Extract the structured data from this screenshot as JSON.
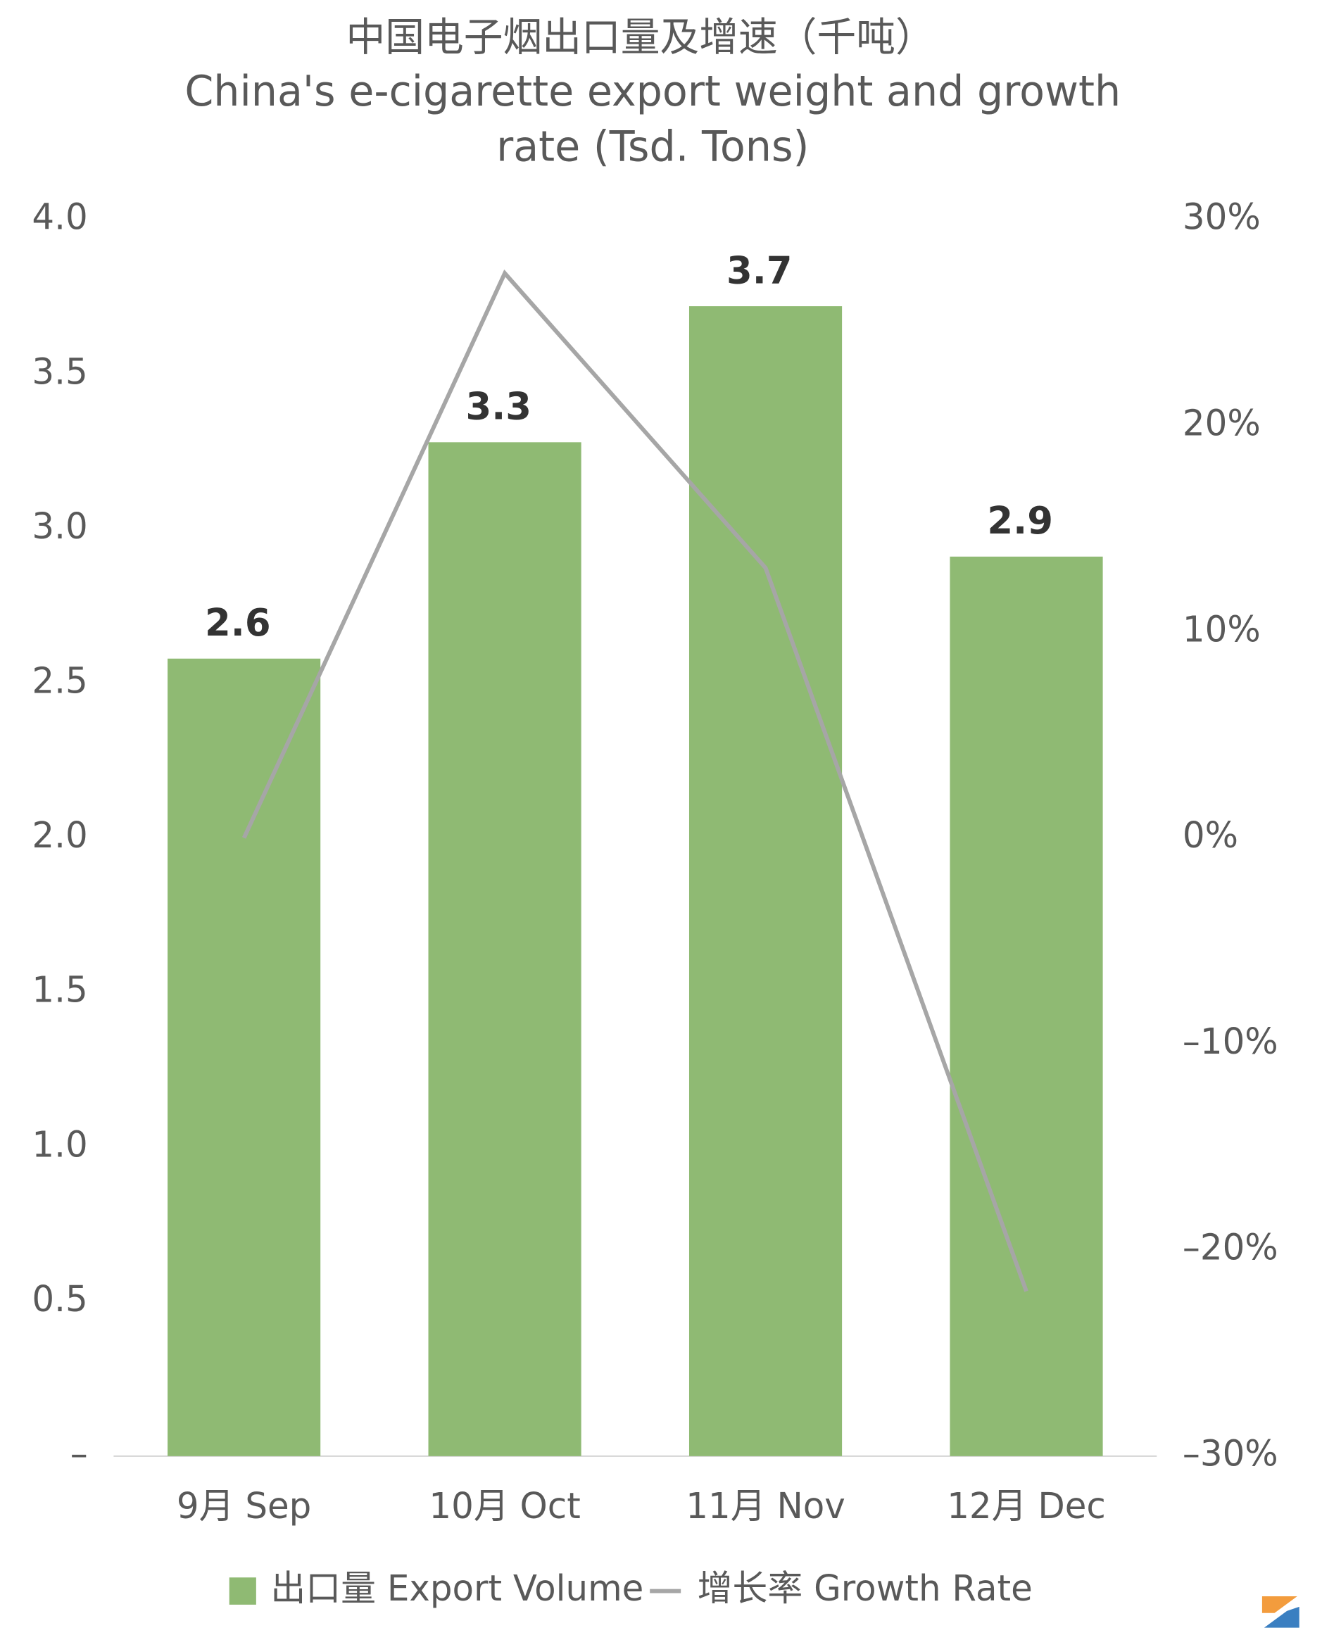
{
  "chart_data": {
    "type": "bar_line",
    "title": "中国电子烟出口量及增速（千吨）",
    "subtitle": [
      "China's e-cigarette export weight and growth",
      "rate (Tsd. Tons)"
    ],
    "categories": [
      "9月 Sep",
      "10月 Oct",
      "11月 Nov",
      "12月 Dec"
    ],
    "series": [
      {
        "name": "出口量 Export Volume",
        "type": "bar",
        "color": "#8fba73",
        "values": [
          2.58,
          3.28,
          3.72,
          2.91
        ],
        "value_labels": [
          "2.6",
          "3.3",
          "3.7",
          "2.9"
        ]
      },
      {
        "name": "增长率 Growth Rate",
        "type": "line",
        "axis": "y2",
        "color": "#a6a6a6",
        "values": [
          0,
          27.4,
          13.1,
          -22
        ]
      }
    ],
    "ylim": [
      0,
      4
    ],
    "yticks": [
      {
        "value": 0,
        "label": "–"
      },
      0.5,
      {
        "value": 1,
        "label": "1.0"
      },
      1.5,
      {
        "value": 2,
        "label": "2.0"
      },
      2.5,
      {
        "value": 3,
        "label": "3.0"
      },
      3.5,
      {
        "value": 4,
        "label": "4.0"
      }
    ],
    "y2lim": [
      -30,
      30
    ],
    "y2ticks": [
      {
        "value": -30,
        "label": "–30%"
      },
      {
        "value": -20,
        "label": "–20%"
      },
      {
        "value": -10,
        "label": "–10%"
      },
      {
        "value": 0,
        "label": "0%"
      },
      {
        "value": 10,
        "label": "10%"
      },
      {
        "value": 20,
        "label": "20%"
      },
      {
        "value": 30,
        "label": "30%"
      }
    ],
    "legend": "bottom"
  }
}
